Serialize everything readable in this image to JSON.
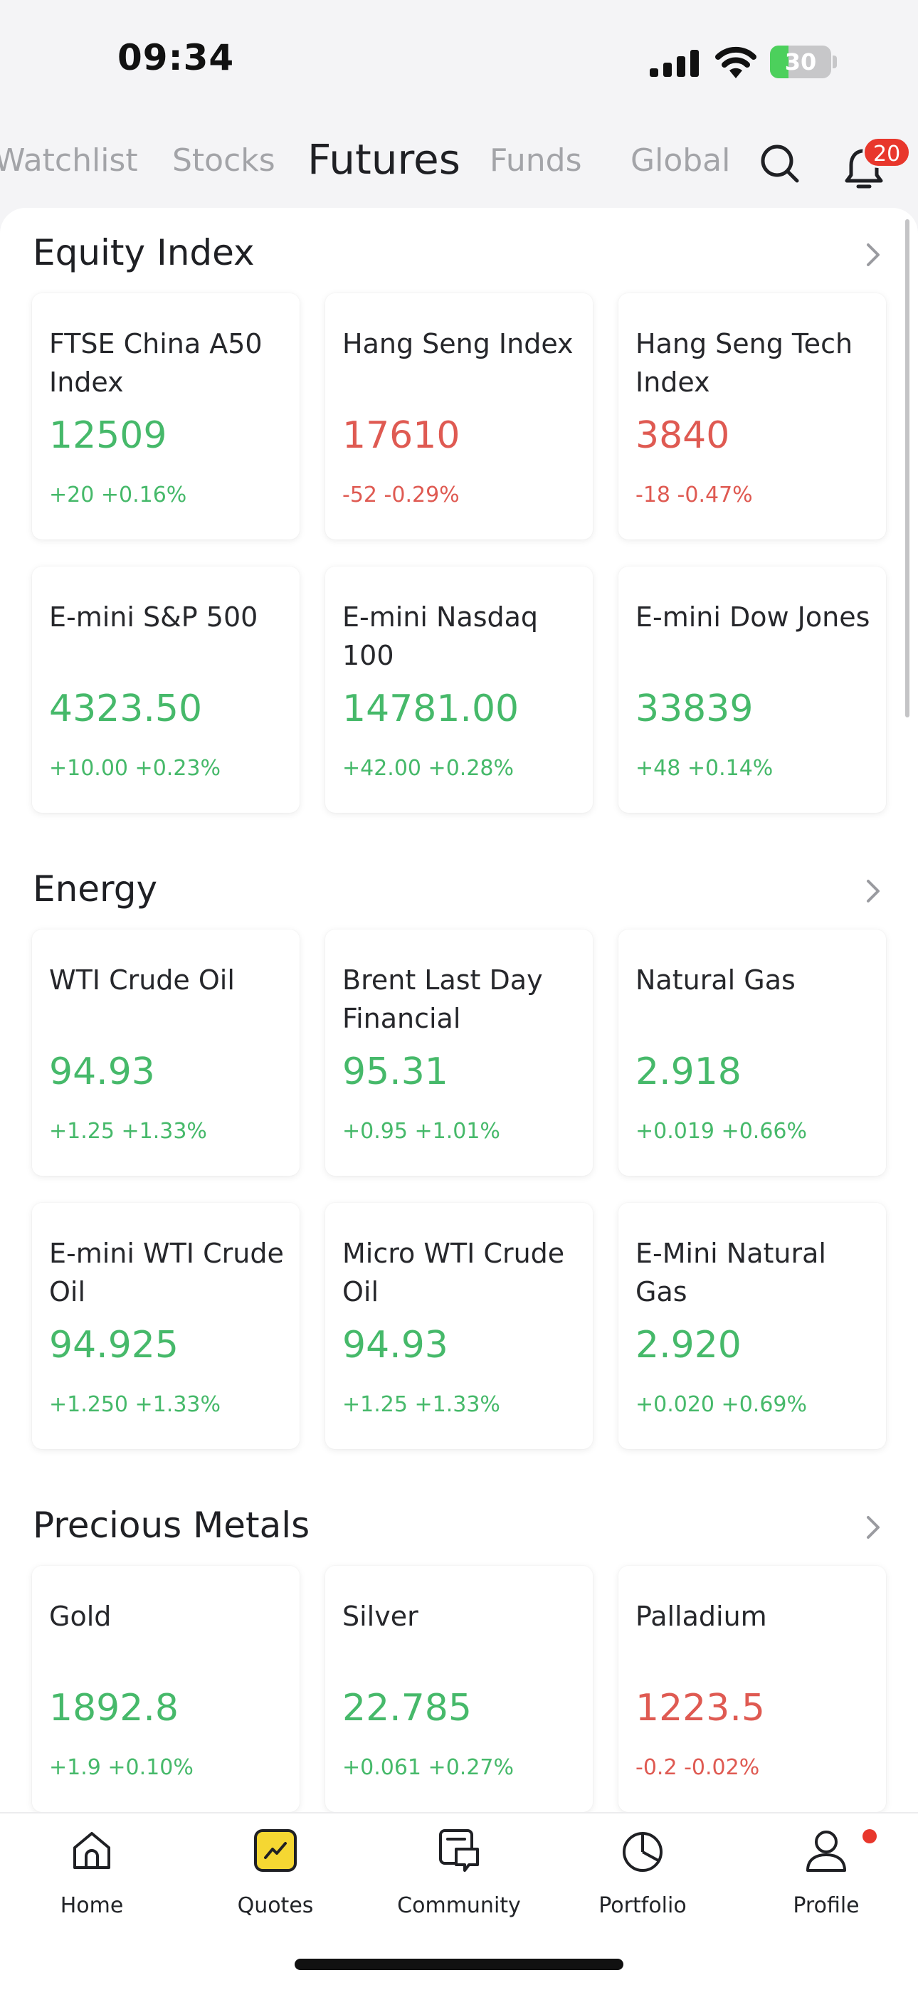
{
  "status_bar": {
    "time": "09:34",
    "battery": "30",
    "battery_level": 0.3
  },
  "top_tabs": {
    "items": [
      {
        "label": "Watchlist",
        "active": false
      },
      {
        "label": "Stocks",
        "active": false
      },
      {
        "label": "Futures",
        "active": true
      },
      {
        "label": "Funds",
        "active": false
      },
      {
        "label": "Global",
        "active": false
      }
    ],
    "notification_count": "20"
  },
  "sections": [
    {
      "title": "Equity Index",
      "cards": [
        {
          "name": "FTSE China A50 Index",
          "price": "12509",
          "change": "+20 +0.16%",
          "direction": "up"
        },
        {
          "name": "Hang Seng Index",
          "price": "17610",
          "change": "-52 -0.29%",
          "direction": "down"
        },
        {
          "name": "Hang Seng Tech Index",
          "price": "3840",
          "change": "-18 -0.47%",
          "direction": "down"
        },
        {
          "name": "E-mini S&P 500",
          "price": "4323.50",
          "change": "+10.00 +0.23%",
          "direction": "up"
        },
        {
          "name": "E-mini Nasdaq 100",
          "price": "14781.00",
          "change": "+42.00 +0.28%",
          "direction": "up"
        },
        {
          "name": "E-mini Dow Jones",
          "price": "33839",
          "change": "+48 +0.14%",
          "direction": "up"
        }
      ]
    },
    {
      "title": "Energy",
      "cards": [
        {
          "name": "WTI Crude Oil",
          "price": "94.93",
          "change": "+1.25 +1.33%",
          "direction": "up"
        },
        {
          "name": "Brent Last Day Financial",
          "price": "95.31",
          "change": "+0.95 +1.01%",
          "direction": "up"
        },
        {
          "name": "Natural Gas",
          "price": "2.918",
          "change": "+0.019 +0.66%",
          "direction": "up"
        },
        {
          "name": "E-mini WTI Crude Oil",
          "price": "94.925",
          "change": "+1.250 +1.33%",
          "direction": "up"
        },
        {
          "name": "Micro WTI Crude Oil",
          "price": "94.93",
          "change": "+1.25 +1.33%",
          "direction": "up"
        },
        {
          "name": "E-Mini Natural Gas",
          "price": "2.920",
          "change": "+0.020 +0.69%",
          "direction": "up"
        }
      ]
    },
    {
      "title": "Precious Metals",
      "cards": [
        {
          "name": "Gold",
          "price": "1892.8",
          "change": "+1.9 +0.10%",
          "direction": "up"
        },
        {
          "name": "Silver",
          "price": "22.785",
          "change": "+0.061 +0.27%",
          "direction": "up"
        },
        {
          "name": "Palladium",
          "price": "1223.5",
          "change": "-0.2 -0.02%",
          "direction": "down"
        }
      ]
    }
  ],
  "bottom_nav": {
    "items": [
      {
        "label": "Home",
        "icon": "home-icon",
        "active": false
      },
      {
        "label": "Quotes",
        "icon": "quotes-icon",
        "active": true
      },
      {
        "label": "Community",
        "icon": "community-icon",
        "active": false
      },
      {
        "label": "Portfolio",
        "icon": "portfolio-icon",
        "active": false
      },
      {
        "label": "Profile",
        "icon": "profile-icon",
        "active": false
      }
    ]
  },
  "colors": {
    "up": "#46b96a",
    "down": "#df5a52",
    "accent": "#f5d732",
    "badge": "#e8372c"
  }
}
